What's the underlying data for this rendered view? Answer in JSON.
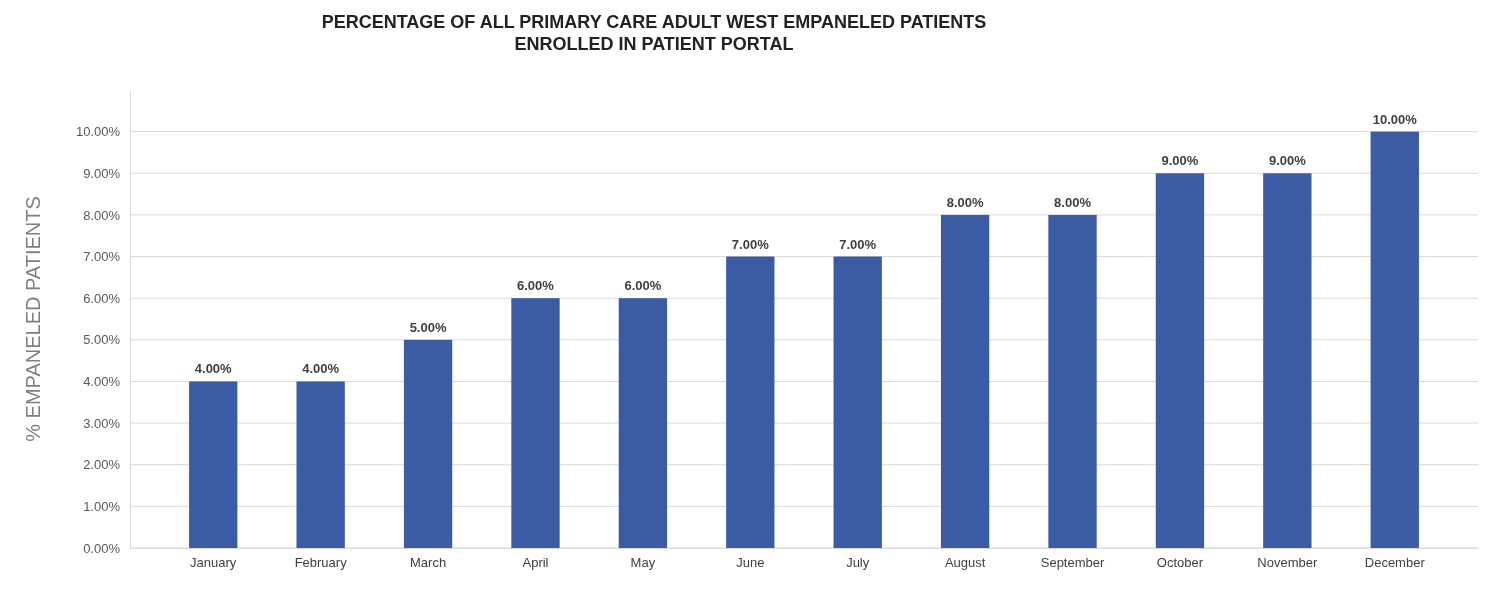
{
  "chart_data": {
    "type": "bar",
    "title": "PERCENTAGE OF ALL PRIMARY CARE ADULT WEST EMPANELED PATIENTS\nENROLLED IN PATIENT PORTAL",
    "ylabel": "% EMPANELED PATIENTS",
    "categories": [
      "January",
      "February",
      "March",
      "April",
      "May",
      "June",
      "July",
      "August",
      "September",
      "October",
      "November",
      "December"
    ],
    "values": [
      4,
      4,
      5,
      6,
      6,
      7,
      7,
      8,
      8,
      9,
      9,
      10
    ],
    "value_labels": [
      "4.00%",
      "4.00%",
      "5.00%",
      "6.00%",
      "6.00%",
      "7.00%",
      "7.00%",
      "8.00%",
      "8.00%",
      "9.00%",
      "9.00%",
      "10.00%"
    ],
    "color": "#3b5ba5",
    "ylim": [
      0,
      11
    ],
    "yticks": [
      {
        "value": 0,
        "label": "0.00%"
      },
      {
        "value": 1,
        "label": "1.00%"
      },
      {
        "value": 2,
        "label": "2.00%"
      },
      {
        "value": 3,
        "label": "3.00%"
      },
      {
        "value": 4,
        "label": "4.00%"
      },
      {
        "value": 5,
        "label": "5.00%"
      },
      {
        "value": 6,
        "label": "6.00%"
      },
      {
        "value": 7,
        "label": "7.00%"
      },
      {
        "value": 8,
        "label": "8.00%"
      },
      {
        "value": 9,
        "label": "9.00%"
      },
      {
        "value": 10,
        "label": "10.00%"
      }
    ],
    "grid": "y"
  }
}
